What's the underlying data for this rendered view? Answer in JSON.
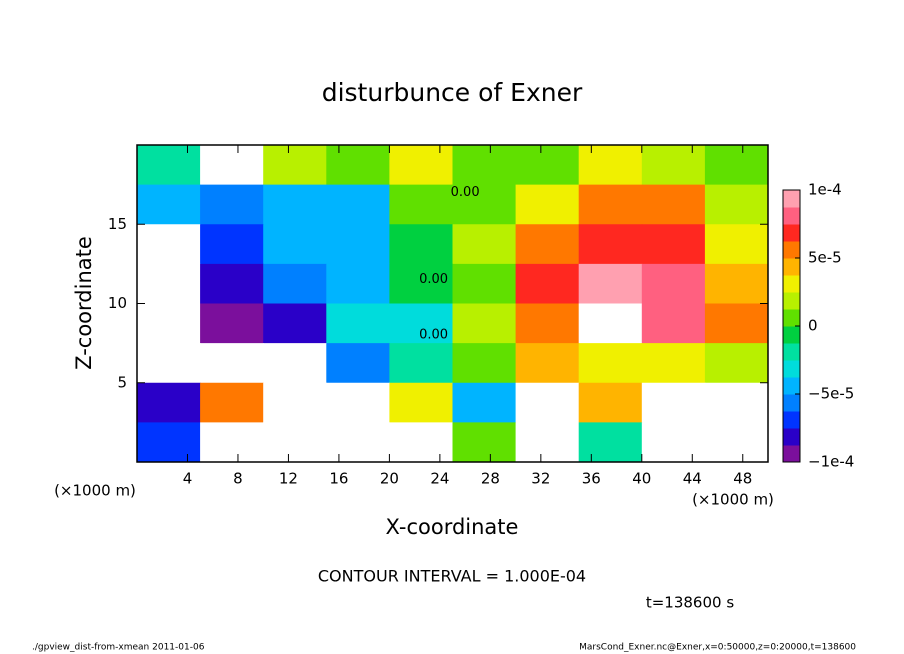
{
  "chart_data": {
    "type": "heatmap",
    "title": "disturbunce of Exner",
    "xlabel": "X-coordinate",
    "ylabel": "Z-coordinate",
    "x_unit_label": "(×1000 m)",
    "xlim": [
      0,
      50
    ],
    "ylim": [
      0,
      20
    ],
    "xticks": [
      4,
      8,
      12,
      16,
      20,
      24,
      28,
      32,
      36,
      40,
      44,
      48
    ],
    "yticks": [
      5,
      10,
      15
    ],
    "x": [
      2.5,
      7.5,
      12.5,
      17.5,
      22.5,
      27.5,
      32.5,
      37.5,
      42.5,
      47.5
    ],
    "y": [
      18.75,
      16.25,
      13.75,
      11.25,
      8.75,
      6.25,
      3.75,
      1.25
    ],
    "z": [
      [
        -2e-05,
        0.00012,
        2e-05,
        1e-05,
        3e-05,
        0,
        1e-05,
        3e-05,
        2e-05,
        1e-05
      ],
      [
        -5e-05,
        -6e-05,
        -4e-05,
        -5e-05,
        0,
        1e-05,
        3e-05,
        6e-05,
        5e-05,
        2e-05
      ],
      [
        -0.00012,
        -7e-05,
        -5e-05,
        -5e-05,
        -1e-05,
        2e-05,
        6e-05,
        7e-05,
        7e-05,
        3e-05
      ],
      [
        -0.00012,
        -8e-05,
        -6e-05,
        -5e-05,
        -1e-05,
        1e-05,
        7e-05,
        9e-05,
        8e-05,
        4e-05
      ],
      [
        -0.00012,
        -0.0001,
        -8e-05,
        -3e-05,
        -3e-05,
        2e-05,
        5e-05,
        0.00012,
        8e-05,
        5e-05
      ],
      [
        -0.00012,
        -0.00012,
        -0.00012,
        -6e-05,
        -2e-05,
        1e-05,
        4e-05,
        3e-05,
        3e-05,
        2e-05
      ],
      [
        -8e-05,
        6e-05,
        -0.00012,
        -0.00012,
        3e-05,
        -4e-05,
        0.00012,
        4e-05,
        0.00012,
        0.00012
      ],
      [
        -7e-05,
        0.00012,
        0.00012,
        -0.00012,
        -0.00012,
        1e-05,
        0.00012,
        -2e-05,
        0.00012,
        0.00012
      ]
    ],
    "clim": [
      -0.0001,
      0.0001
    ],
    "cticks": [
      {
        "value": -0.0001,
        "label": "−1e-4"
      },
      {
        "value": -5e-05,
        "label": "−5e-5"
      },
      0,
      {
        "value": 5e-05,
        "label": "5e-5"
      },
      {
        "value": 0.0001,
        "label": "1e-4"
      }
    ],
    "colors": [
      "#7b0f9c",
      "#2a00c8",
      "#0034ff",
      "#0080ff",
      "#00b4ff",
      "#00dcdc",
      "#00e0a0",
      "#00d040",
      "#60e000",
      "#b8f000",
      "#f0f000",
      "#ffb400",
      "#ff7800",
      "#ff2820",
      "#ff6080",
      "#ffa0b0"
    ],
    "out_of_range_color": "#ffffff",
    "annotations": [
      {
        "text": "0.00",
        "x": 26,
        "z": 17
      },
      {
        "text": "0.00",
        "x": 23.5,
        "z": 11.5
      },
      {
        "text": "0.00",
        "x": 23.5,
        "z": 8
      }
    ],
    "contour_interval": "CONTOUR INTERVAL = 1.000E-04",
    "time_label": "t=138600 s",
    "footer_left": "./gpview_dist-from-xmean  2011-01-06",
    "footer_right": "MarsCond_Exner.nc@Exner,x=0:50000,z=0:20000,t=138600"
  }
}
